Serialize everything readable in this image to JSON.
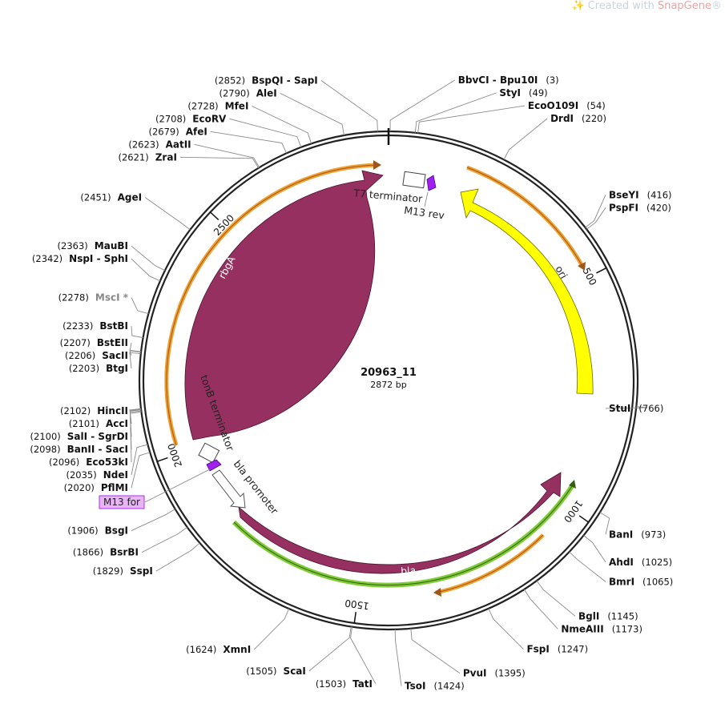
{
  "watermark": {
    "prefix": "Created with ",
    "brand": "SnapGene",
    "reg": "®"
  },
  "plasmid": {
    "name": "20963_11",
    "length_label": "2872 bp",
    "length": 2872
  },
  "colors": {
    "rbgA": "#963060",
    "bla": "#963060",
    "ori": "#ffff00",
    "primer": "#a020f0",
    "orange_arrow": "#f0a030",
    "green_arrow": "#7ecb35",
    "backbone": "#333333"
  },
  "ticks": [
    {
      "label": "500",
      "pos": 500
    },
    {
      "label": "1000",
      "pos": 1000
    },
    {
      "label": "1500",
      "pos": 1500
    },
    {
      "label": "2000",
      "pos": 2000
    },
    {
      "label": "2500",
      "pos": 2500
    }
  ],
  "features": [
    {
      "name": "rbgA",
      "type": "cds",
      "start": 1984,
      "end": 2840,
      "color": "#963060"
    },
    {
      "name": "bla",
      "type": "cds",
      "start": 1066,
      "end": 1868,
      "color": "#963060"
    },
    {
      "name": "ori",
      "type": "rep_origin",
      "start": 300,
      "end": 760,
      "color": "#ffff00",
      "reverse": true
    },
    {
      "name": "T7 terminator",
      "type": "terminator"
    },
    {
      "name": "M13 rev",
      "type": "primer"
    },
    {
      "name": "tonB terminator",
      "type": "terminator"
    },
    {
      "name": "bla promoter",
      "type": "promoter"
    },
    {
      "name": "M13 for",
      "type": "primer_boxed"
    }
  ],
  "enzymes": [
    {
      "name": "BspQI",
      "name2": "SapI",
      "pos_text": "(2852)",
      "pos": 2852,
      "side": "left"
    },
    {
      "name": "BbvCI",
      "name2": "Bpu10I",
      "pos_text": "(3)",
      "pos": 3,
      "side": "right"
    },
    {
      "name": "AleI",
      "pos_text": "(2790)",
      "pos": 2790,
      "side": "left"
    },
    {
      "name": "StyI",
      "pos_text": "(49)",
      "pos": 49,
      "side": "right"
    },
    {
      "name": "EcoO109I",
      "pos_text": "(54)",
      "pos": 54,
      "side": "right"
    },
    {
      "name": "MfeI",
      "pos_text": "(2728)",
      "pos": 2728,
      "side": "left"
    },
    {
      "name": "EcoRV",
      "pos_text": "(2708)",
      "pos": 2708,
      "side": "left"
    },
    {
      "name": "AfeI",
      "pos_text": "(2679)",
      "pos": 2679,
      "side": "left"
    },
    {
      "name": "DrdI",
      "pos_text": "(220)",
      "pos": 220,
      "side": "right"
    },
    {
      "name": "AatII",
      "pos_text": "(2623)",
      "pos": 2623,
      "side": "left"
    },
    {
      "name": "ZraI",
      "pos_text": "(2621)",
      "pos": 2621,
      "side": "left"
    },
    {
      "name": "AgeI",
      "pos_text": "(2451)",
      "pos": 2451,
      "side": "left"
    },
    {
      "name": "BseYI",
      "pos_text": "(416)",
      "pos": 416,
      "side": "right"
    },
    {
      "name": "PspFI",
      "pos_text": "(420)",
      "pos": 420,
      "side": "right"
    },
    {
      "name": "MauBI",
      "pos_text": "(2363)",
      "pos": 2363,
      "side": "left"
    },
    {
      "name": "NspI",
      "name2": "SphI",
      "pos_text": "(2342)",
      "pos": 2342,
      "side": "left"
    },
    {
      "name": "MscI *",
      "pos_text": "(2278)",
      "pos": 2278,
      "side": "left",
      "gray": true
    },
    {
      "name": "BstBI",
      "pos_text": "(2233)",
      "pos": 2233,
      "side": "left"
    },
    {
      "name": "BstEII",
      "pos_text": "(2207)",
      "pos": 2207,
      "side": "left"
    },
    {
      "name": "SacII",
      "pos_text": "(2206)",
      "pos": 2206,
      "side": "left"
    },
    {
      "name": "BtgI",
      "pos_text": "(2203)",
      "pos": 2203,
      "side": "left"
    },
    {
      "name": "StuI",
      "pos_text": "(766)",
      "pos": 766,
      "side": "right"
    },
    {
      "name": "HincII",
      "pos_text": "(2102)",
      "pos": 2102,
      "side": "left"
    },
    {
      "name": "AccI",
      "pos_text": "(2101)",
      "pos": 2101,
      "side": "left"
    },
    {
      "name": "SalI",
      "name2": "SgrDI",
      "pos_text": "(2100)",
      "pos": 2100,
      "side": "left"
    },
    {
      "name": "BanII",
      "name2": "SacI",
      "pos_text": "(2098)",
      "pos": 2098,
      "side": "left"
    },
    {
      "name": "Eco53kI",
      "pos_text": "(2096)",
      "pos": 2096,
      "side": "left"
    },
    {
      "name": "NdeI",
      "pos_text": "(2035)",
      "pos": 2035,
      "side": "left"
    },
    {
      "name": "PflMI",
      "pos_text": "(2020)",
      "pos": 2020,
      "side": "left"
    },
    {
      "name": "BsgI",
      "pos_text": "(1906)",
      "pos": 1906,
      "side": "left"
    },
    {
      "name": "BanI",
      "pos_text": "(973)",
      "pos": 973,
      "side": "right"
    },
    {
      "name": "BsrBI",
      "pos_text": "(1866)",
      "pos": 1866,
      "side": "left"
    },
    {
      "name": "AhdI",
      "pos_text": "(1025)",
      "pos": 1025,
      "side": "right"
    },
    {
      "name": "SspI",
      "pos_text": "(1829)",
      "pos": 1829,
      "side": "left"
    },
    {
      "name": "BmrI",
      "pos_text": "(1065)",
      "pos": 1065,
      "side": "right"
    },
    {
      "name": "BglI",
      "pos_text": "(1145)",
      "pos": 1145,
      "side": "right"
    },
    {
      "name": "NmeAIII",
      "pos_text": "(1173)",
      "pos": 1173,
      "side": "right"
    },
    {
      "name": "FspI",
      "pos_text": "(1247)",
      "pos": 1247,
      "side": "right"
    },
    {
      "name": "XmnI",
      "pos_text": "(1624)",
      "pos": 1624,
      "side": "left"
    },
    {
      "name": "ScaI",
      "pos_text": "(1505)",
      "pos": 1505,
      "side": "left"
    },
    {
      "name": "TatI",
      "pos_text": "(1503)",
      "pos": 1503,
      "side": "left"
    },
    {
      "name": "TsoI",
      "pos_text": "(1424)",
      "pos": 1424,
      "side": "right"
    },
    {
      "name": "PvuI",
      "pos_text": "(1395)",
      "pos": 1395,
      "side": "right"
    }
  ]
}
